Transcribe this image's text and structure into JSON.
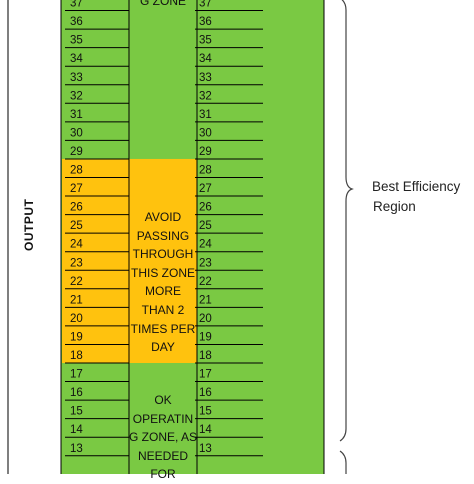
{
  "axis_label": "OUTPUT",
  "levels_top_to_bottom": [
    "37",
    "36",
    "35",
    "34",
    "33",
    "32",
    "31",
    "30",
    "29",
    "28",
    "27",
    "26",
    "25",
    "24",
    "23",
    "22",
    "21",
    "20",
    "19",
    "18",
    "17",
    "16",
    "15",
    "14",
    "13"
  ],
  "zones": [
    {
      "id": "upper",
      "text_lines": [
        "G ZONE"
      ],
      "color": "#7ac943"
    },
    {
      "id": "avoid",
      "text_lines": [
        "AVOID",
        "PASSING",
        "THROUGH",
        "THIS ZONE",
        "MORE",
        "THAN 2",
        "TIMES PER",
        "DAY"
      ],
      "color": "#ffc20e"
    },
    {
      "id": "ok",
      "text_lines": [
        "OK",
        "OPERATIN",
        "G ZONE, AS",
        "NEEDED",
        "FOR"
      ],
      "color": "#7ac943"
    }
  ],
  "region_label": {
    "line1": "Best Efficiency",
    "line2": "Region"
  },
  "colors": {
    "green": "#7ac943",
    "orange": "#ffc20e",
    "border": "#000000"
  }
}
